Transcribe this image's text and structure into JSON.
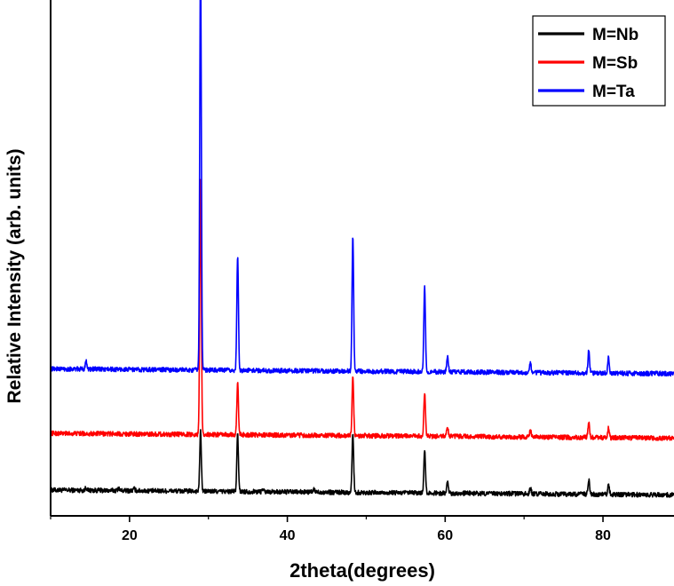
{
  "chart_data": {
    "type": "line",
    "xlabel": "2theta(degrees)",
    "ylabel": "Relative Intensity (arb. units)",
    "xlim": [
      10,
      89
    ],
    "ylim": [
      0,
      100
    ],
    "x_ticks": [
      20,
      40,
      60,
      80
    ],
    "y_tick_labels": false,
    "grid": false,
    "legend_position": "top-right",
    "series": [
      {
        "name": "M=Nb",
        "color": "#000000",
        "baseline": 5,
        "slope": -0.012,
        "peaks": [
          {
            "x": 14.5,
            "h": 0.6
          },
          {
            "x": 18.6,
            "h": 0.5
          },
          {
            "x": 20.6,
            "h": 0.4
          },
          {
            "x": 29.0,
            "h": 11.5
          },
          {
            "x": 33.7,
            "h": 11.0
          },
          {
            "x": 36.9,
            "h": 0.6
          },
          {
            "x": 43.4,
            "h": 0.5
          },
          {
            "x": 48.3,
            "h": 11.5
          },
          {
            "x": 57.4,
            "h": 8.5
          },
          {
            "x": 60.3,
            "h": 2.3
          },
          {
            "x": 70.8,
            "h": 1.2
          },
          {
            "x": 78.2,
            "h": 2.8
          },
          {
            "x": 80.7,
            "h": 1.9
          }
        ]
      },
      {
        "name": "M=Sb",
        "color": "#ff0000",
        "baseline": 16,
        "slope": -0.012,
        "peaks": [
          {
            "x": 29.0,
            "h": 49
          },
          {
            "x": 33.7,
            "h": 10
          },
          {
            "x": 48.3,
            "h": 11.5
          },
          {
            "x": 57.4,
            "h": 8.3
          },
          {
            "x": 60.3,
            "h": 1.9
          },
          {
            "x": 70.8,
            "h": 1.3
          },
          {
            "x": 78.2,
            "h": 3.0
          },
          {
            "x": 80.7,
            "h": 2.1
          }
        ]
      },
      {
        "name": "M=Ta",
        "color": "#0000ff",
        "baseline": 28.5,
        "slope": -0.012,
        "peaks": [
          {
            "x": 14.5,
            "h": 1.7
          },
          {
            "x": 29.0,
            "h": 80.5
          },
          {
            "x": 33.7,
            "h": 22
          },
          {
            "x": 48.3,
            "h": 26
          },
          {
            "x": 57.4,
            "h": 16.5
          },
          {
            "x": 60.3,
            "h": 3.0
          },
          {
            "x": 70.8,
            "h": 1.7
          },
          {
            "x": 78.2,
            "h": 4.5
          },
          {
            "x": 80.7,
            "h": 3.2
          }
        ]
      }
    ]
  }
}
